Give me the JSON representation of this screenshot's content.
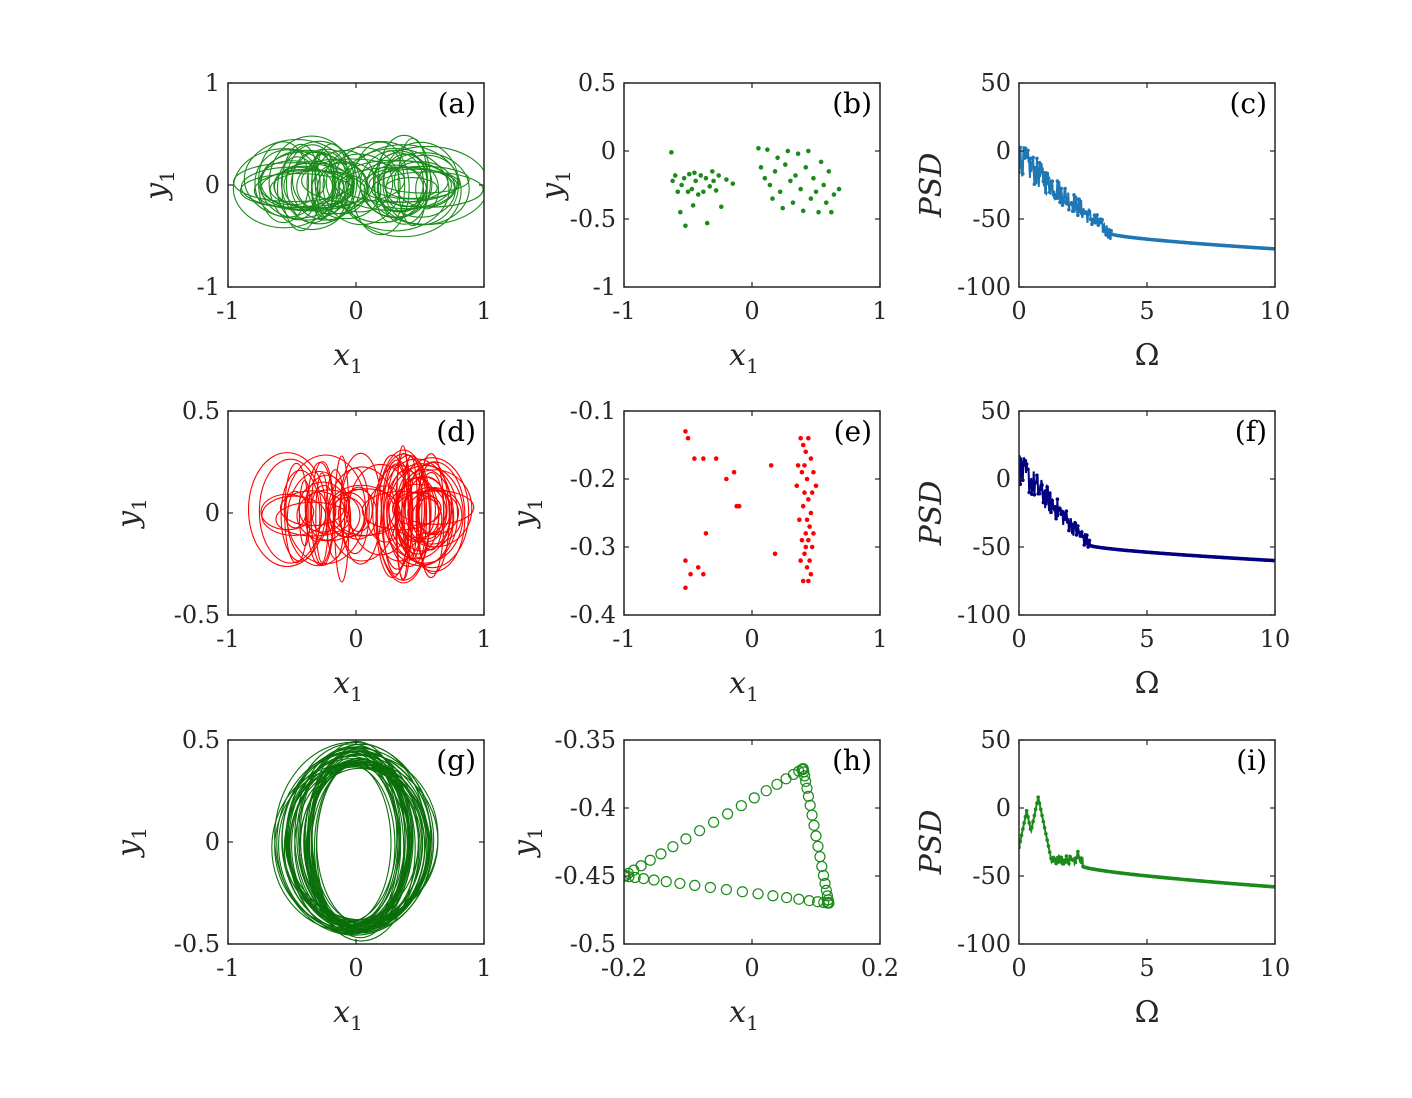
{
  "chart_data": [
    {
      "id": "a",
      "type": "line",
      "panel_label": "(a)",
      "xlabel": "x1",
      "ylabel": "y1",
      "xlim": [
        -1,
        1
      ],
      "ylim": [
        -1,
        1
      ],
      "xticks": [
        -1,
        0,
        1
      ],
      "xtick_labels": [
        "-1",
        "0",
        "1"
      ],
      "yticks": [
        -1,
        0,
        1
      ],
      "ytick_labels": [
        "-1",
        "0",
        "1"
      ],
      "color": "#1a8a1a",
      "series": [
        {
          "kind": "trajectory",
          "centers": [
            -0.4,
            0.4
          ],
          "rx_range": [
            0.08,
            0.48
          ],
          "ry_range": [
            0.1,
            0.46
          ],
          "loops": 60
        }
      ]
    },
    {
      "id": "b",
      "type": "scatter",
      "panel_label": "(b)",
      "xlabel": "x1",
      "ylabel": "y1",
      "xlim": [
        -1,
        1
      ],
      "ylim": [
        -1,
        0.5
      ],
      "xticks": [
        -1,
        0,
        1
      ],
      "xtick_labels": [
        "-1",
        "0",
        "1"
      ],
      "yticks": [
        -1,
        -0.5,
        0,
        0.5
      ],
      "ytick_labels": [
        "-1",
        "-0.5",
        "0",
        "0.5"
      ],
      "color": "#1a8a1a",
      "series": [
        {
          "kind": "points",
          "points": [
            [
              -0.63,
              -0.01
            ],
            [
              -0.62,
              -0.22
            ],
            [
              -0.6,
              -0.18
            ],
            [
              -0.58,
              -0.3
            ],
            [
              -0.56,
              -0.45
            ],
            [
              -0.55,
              -0.25
            ],
            [
              -0.53,
              -0.2
            ],
            [
              -0.52,
              -0.55
            ],
            [
              -0.5,
              -0.3
            ],
            [
              -0.49,
              -0.17
            ],
            [
              -0.47,
              -0.28
            ],
            [
              -0.46,
              -0.4
            ],
            [
              -0.45,
              -0.16
            ],
            [
              -0.44,
              -0.22
            ],
            [
              -0.42,
              -0.32
            ],
            [
              -0.4,
              -0.18
            ],
            [
              -0.38,
              -0.3
            ],
            [
              -0.36,
              -0.2
            ],
            [
              -0.35,
              -0.53
            ],
            [
              -0.33,
              -0.26
            ],
            [
              -0.31,
              -0.15
            ],
            [
              -0.3,
              -0.22
            ],
            [
              -0.28,
              -0.29
            ],
            [
              -0.26,
              -0.18
            ],
            [
              -0.24,
              -0.41
            ],
            [
              -0.2,
              -0.21
            ],
            [
              -0.15,
              -0.24
            ],
            [
              0.05,
              0.02
            ],
            [
              0.07,
              -0.12
            ],
            [
              0.1,
              -0.2
            ],
            [
              0.12,
              0.01
            ],
            [
              0.14,
              -0.25
            ],
            [
              0.16,
              -0.35
            ],
            [
              0.18,
              -0.15
            ],
            [
              0.2,
              -0.05
            ],
            [
              0.22,
              -0.3
            ],
            [
              0.24,
              -0.42
            ],
            [
              0.26,
              -0.1
            ],
            [
              0.28,
              0.0
            ],
            [
              0.3,
              -0.22
            ],
            [
              0.32,
              -0.38
            ],
            [
              0.34,
              -0.18
            ],
            [
              0.36,
              -0.02
            ],
            [
              0.38,
              -0.28
            ],
            [
              0.4,
              -0.44
            ],
            [
              0.42,
              -0.12
            ],
            [
              0.44,
              0.0
            ],
            [
              0.46,
              -0.35
            ],
            [
              0.48,
              -0.2
            ],
            [
              0.5,
              -0.3
            ],
            [
              0.52,
              -0.45
            ],
            [
              0.54,
              -0.08
            ],
            [
              0.56,
              -0.25
            ],
            [
              0.58,
              -0.38
            ],
            [
              0.6,
              -0.15
            ],
            [
              0.62,
              -0.45
            ],
            [
              0.64,
              -0.32
            ],
            [
              0.68,
              -0.28
            ]
          ]
        }
      ]
    },
    {
      "id": "c",
      "type": "line",
      "panel_label": "(c)",
      "xlabel": "",
      "ylabel": "PSD",
      "xlim": [
        0,
        10
      ],
      "ylim": [
        -100,
        50
      ],
      "xticks": [
        0,
        5,
        10
      ],
      "xtick_labels": [
        "0",
        "5",
        "10"
      ],
      "yticks": [
        -100,
        -50,
        0,
        50
      ],
      "ytick_labels": [
        "-100",
        "-50",
        "0",
        "50"
      ],
      "color": "#1f77b4",
      "series": [
        {
          "kind": "psd",
          "start": -5,
          "noise_end": 3.6,
          "noise_level": -61,
          "tail_end": -72
        }
      ]
    },
    {
      "id": "d",
      "type": "line",
      "panel_label": "(d)",
      "xlabel": "x1",
      "ylabel": "y1",
      "xlim": [
        -1,
        1
      ],
      "ylim": [
        -0.5,
        0.5
      ],
      "xticks": [
        -1,
        0,
        1
      ],
      "xtick_labels": [
        "-1",
        "0",
        "1"
      ],
      "yticks": [
        -0.5,
        0,
        0.5
      ],
      "ytick_labels": [
        "-0.5",
        "0",
        "0.5"
      ],
      "color": "#ff0000",
      "series": [
        {
          "kind": "trajectory",
          "centers": [
            -0.4,
            0.45
          ],
          "rx_range": [
            0.04,
            0.32
          ],
          "ry_range": [
            0.08,
            0.34
          ],
          "loops": 70,
          "bias": 0.7
        }
      ]
    },
    {
      "id": "e",
      "type": "scatter",
      "panel_label": "(e)",
      "xlabel": "x1",
      "ylabel": "y1",
      "xlim": [
        -1,
        1
      ],
      "ylim": [
        -0.4,
        -0.1
      ],
      "xticks": [
        -1,
        0,
        1
      ],
      "xtick_labels": [
        "-1",
        "0",
        "1"
      ],
      "yticks": [
        -0.4,
        -0.3,
        -0.2,
        -0.1
      ],
      "ytick_labels": [
        "-0.4",
        "-0.3",
        "-0.2",
        "-0.1"
      ],
      "color": "#ff0000",
      "series": [
        {
          "kind": "points",
          "points": [
            [
              -0.52,
              -0.13
            ],
            [
              -0.5,
              -0.14
            ],
            [
              -0.45,
              -0.17
            ],
            [
              -0.38,
              -0.17
            ],
            [
              -0.28,
              -0.17
            ],
            [
              -0.2,
              -0.2
            ],
            [
              -0.14,
              -0.19
            ],
            [
              -0.1,
              -0.24
            ],
            [
              -0.52,
              -0.32
            ],
            [
              -0.48,
              -0.34
            ],
            [
              -0.42,
              -0.33
            ],
            [
              -0.38,
              -0.34
            ],
            [
              -0.36,
              -0.28
            ],
            [
              -0.52,
              -0.36
            ],
            [
              -0.12,
              -0.24
            ],
            [
              0.15,
              -0.18
            ],
            [
              0.18,
              -0.31
            ],
            [
              0.38,
              -0.14
            ],
            [
              0.4,
              -0.15
            ],
            [
              0.42,
              -0.16
            ],
            [
              0.44,
              -0.14
            ],
            [
              0.36,
              -0.18
            ],
            [
              0.39,
              -0.19
            ],
            [
              0.43,
              -0.2
            ],
            [
              0.46,
              -0.17
            ],
            [
              0.48,
              -0.19
            ],
            [
              0.41,
              -0.22
            ],
            [
              0.44,
              -0.23
            ],
            [
              0.47,
              -0.22
            ],
            [
              0.4,
              -0.24
            ],
            [
              0.43,
              -0.26
            ],
            [
              0.46,
              -0.25
            ],
            [
              0.45,
              -0.27
            ],
            [
              0.42,
              -0.28
            ],
            [
              0.39,
              -0.29
            ],
            [
              0.44,
              -0.29
            ],
            [
              0.47,
              -0.3
            ],
            [
              0.41,
              -0.31
            ],
            [
              0.45,
              -0.32
            ],
            [
              0.38,
              -0.32
            ],
            [
              0.43,
              -0.33
            ],
            [
              0.46,
              -0.34
            ],
            [
              0.4,
              -0.35
            ],
            [
              0.44,
              -0.35
            ],
            [
              0.42,
              -0.3
            ],
            [
              0.37,
              -0.26
            ],
            [
              0.5,
              -0.21
            ],
            [
              0.35,
              -0.21
            ],
            [
              0.48,
              -0.28
            ],
            [
              0.41,
              -0.18
            ]
          ]
        }
      ]
    },
    {
      "id": "f",
      "type": "line",
      "panel_label": "(f)",
      "xlabel": "",
      "ylabel": "PSD",
      "xlim": [
        0,
        10
      ],
      "ylim": [
        -100,
        50
      ],
      "xticks": [
        0,
        5,
        10
      ],
      "xtick_labels": [
        "0",
        "5",
        "10"
      ],
      "yticks": [
        -100,
        -50,
        0,
        50
      ],
      "ytick_labels": [
        "-100",
        "-50",
        "0",
        "50"
      ],
      "color": "#000080",
      "series": [
        {
          "kind": "psd",
          "start": 8,
          "noise_end": 2.8,
          "noise_level": -49,
          "tail_end": -60
        }
      ]
    },
    {
      "id": "g",
      "type": "line",
      "panel_label": "(g)",
      "xlabel": "x1",
      "ylabel": "y1",
      "xlim": [
        -1,
        1
      ],
      "ylim": [
        -0.5,
        0.5
      ],
      "xticks": [
        -1,
        0,
        1
      ],
      "xtick_labels": [
        "-1",
        "0",
        "1"
      ],
      "yticks": [
        -0.5,
        0,
        0.5
      ],
      "ytick_labels": [
        "-0.5",
        "0",
        "0.5"
      ],
      "color": "#0a6e0a",
      "series": [
        {
          "kind": "trajectory",
          "centers": [
            0.0,
            0.0
          ],
          "rx_range": [
            0.3,
            0.62
          ],
          "ry_range": [
            0.38,
            0.47
          ],
          "loops": 45,
          "single": true
        }
      ]
    },
    {
      "id": "h",
      "type": "scatter",
      "panel_label": "(h)",
      "xlabel": "x1",
      "ylabel": "y1",
      "xlim": [
        -0.2,
        0.2
      ],
      "ylim": [
        -0.5,
        -0.35
      ],
      "xticks": [
        -0.2,
        0,
        0.2
      ],
      "xtick_labels": [
        "-0.2",
        "0",
        "0.2"
      ],
      "yticks": [
        -0.5,
        -0.45,
        -0.4,
        -0.35
      ],
      "ytick_labels": [
        "-0.5",
        "-0.45",
        "-0.4",
        "-0.35"
      ],
      "color": "#1a8a1a",
      "marker": "circle",
      "series": [
        {
          "kind": "triangle",
          "vertices": [
            [
              -0.2,
              -0.45
            ],
            [
              0.08,
              -0.371
            ],
            [
              0.12,
              -0.47
            ]
          ],
          "n_per_edge": 20
        }
      ]
    },
    {
      "id": "i",
      "type": "line",
      "panel_label": "(i)",
      "xlabel": "",
      "ylabel": "PSD",
      "xlim": [
        0,
        10
      ],
      "ylim": [
        -100,
        50
      ],
      "xticks": [
        0,
        5,
        10
      ],
      "xtick_labels": [
        "0",
        "5",
        "10"
      ],
      "yticks": [
        -100,
        -50,
        0,
        50
      ],
      "ytick_labels": [
        "-100",
        "-50",
        "0",
        "50"
      ],
      "color": "#1a8a1a",
      "series": [
        {
          "kind": "psd_peaks",
          "start": -38,
          "peaks": [
            [
              0.3,
              -2
            ],
            [
              0.75,
              8
            ],
            [
              1.3,
              -38
            ],
            [
              1.8,
              -45
            ],
            [
              2.3,
              -32
            ]
          ],
          "tail_end": -58
        }
      ]
    }
  ],
  "xlabel_omega": "Ω"
}
